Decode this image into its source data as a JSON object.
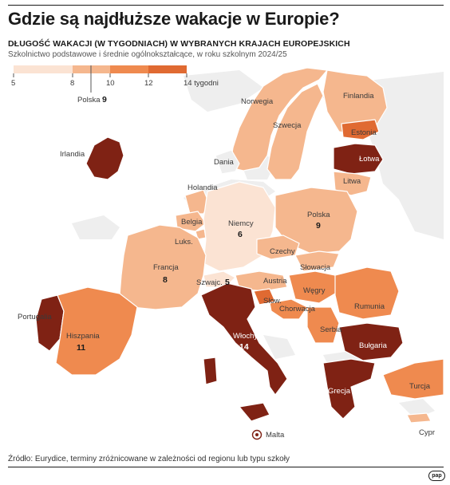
{
  "title": "Gdzie są najdłuższe wakacje w Europie?",
  "subtitle": "DŁUGOŚĆ WAKACJI (W TYGODNIACH) W WYBRANYCH KRAJACH EUROPEJSKICH",
  "note": "Szkolnictwo podstawowe i średnie ogólnokształcące, w roku szkolnym 2024/25",
  "legend": {
    "ticks": [
      "5",
      "8",
      "10",
      "12",
      "14 tygodni"
    ],
    "colors": [
      "#fbe3d3",
      "#f5b78e",
      "#ef8a4f",
      "#e06a32",
      "#7f2214"
    ],
    "marker_label": "Polska",
    "marker_value": "9"
  },
  "countries": [
    {
      "name": "Irlandia",
      "weeks": null
    },
    {
      "name": "Norwegia",
      "weeks": null
    },
    {
      "name": "Finlandia",
      "weeks": null
    },
    {
      "name": "Szwecja",
      "weeks": null
    },
    {
      "name": "Estonia",
      "weeks": null
    },
    {
      "name": "Łotwa",
      "weeks": null
    },
    {
      "name": "Litwa",
      "weeks": null
    },
    {
      "name": "Dania",
      "weeks": null
    },
    {
      "name": "Holandia",
      "weeks": null
    },
    {
      "name": "Belgia",
      "weeks": null
    },
    {
      "name": "Luks.",
      "weeks": null
    },
    {
      "name": "Niemcy",
      "weeks": "6"
    },
    {
      "name": "Polska",
      "weeks": "9"
    },
    {
      "name": "Czechy",
      "weeks": null
    },
    {
      "name": "Słowacja",
      "weeks": null
    },
    {
      "name": "Francja",
      "weeks": "8"
    },
    {
      "name": "Szwajc.",
      "weeks": "5"
    },
    {
      "name": "Austria",
      "weeks": null
    },
    {
      "name": "Węgry",
      "weeks": null
    },
    {
      "name": "Słow.",
      "weeks": null
    },
    {
      "name": "Chorwacja",
      "weeks": null
    },
    {
      "name": "Rumunia",
      "weeks": null
    },
    {
      "name": "Serbia",
      "weeks": null
    },
    {
      "name": "Bułgaria",
      "weeks": null
    },
    {
      "name": "Portugalia",
      "weeks": null
    },
    {
      "name": "Hiszpania",
      "weeks": "11"
    },
    {
      "name": "Włochy",
      "weeks": "14"
    },
    {
      "name": "Grecja",
      "weeks": null
    },
    {
      "name": "Turcja",
      "weeks": null
    },
    {
      "name": "Malta",
      "weeks": null
    },
    {
      "name": "Cypr",
      "weeks": null
    }
  ],
  "source": "Źródło: Eurydice, terminy zróżnicowane w zależności od regionu lub typu szkoły",
  "logo": "pap"
}
